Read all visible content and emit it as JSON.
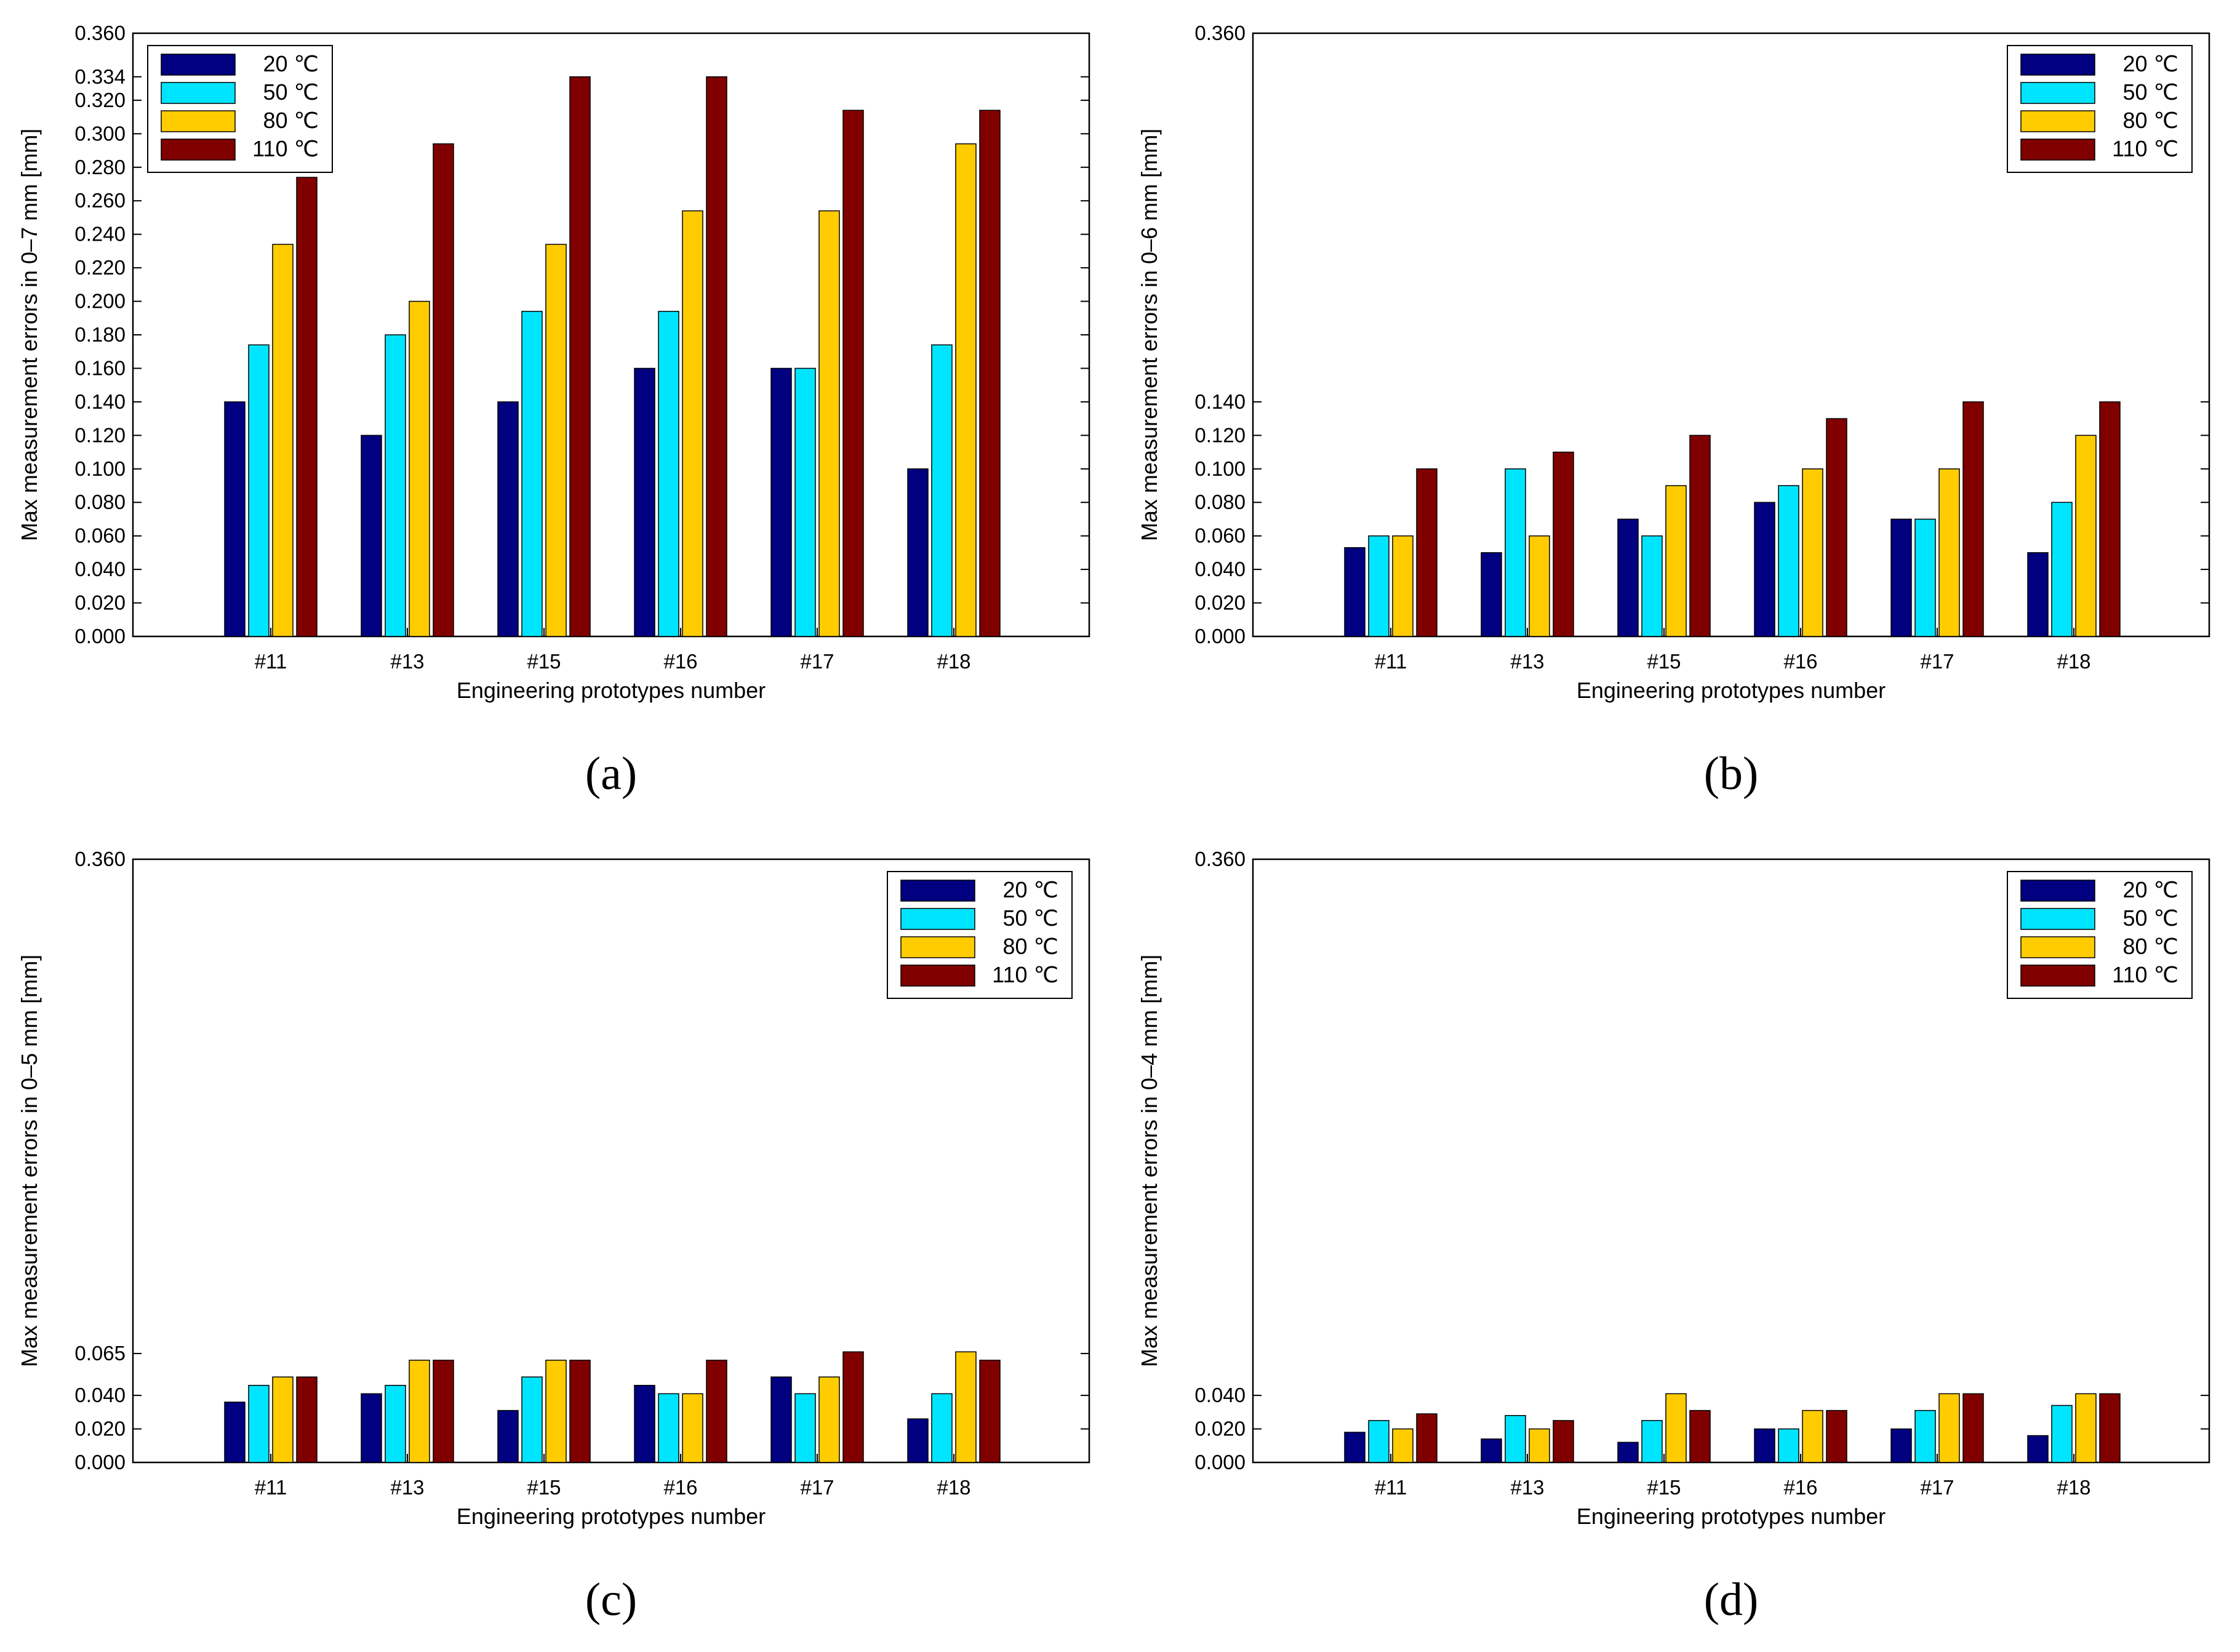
{
  "chart_data": [
    {
      "type": "bar",
      "panel_label": "(a)",
      "xlabel": "Engineering prototypes number",
      "ylabel": "Max measurement errors in 0–7 mm [mm]",
      "categories": [
        "#11",
        "#13",
        "#15",
        "#16",
        "#17",
        "#18"
      ],
      "ylim": [
        0,
        0.36
      ],
      "yticks": [
        "0.000",
        "0.020",
        "0.040",
        "0.060",
        "0.080",
        "0.100",
        "0.120",
        "0.140",
        "0.160",
        "0.180",
        "0.200",
        "0.220",
        "0.240",
        "0.260",
        "0.280",
        "0.300",
        "0.320",
        "0.334",
        "0.360"
      ],
      "legend_position": "top-left",
      "series": [
        {
          "name": "20 ℃",
          "color": "#000080",
          "values": [
            0.14,
            0.12,
            0.14,
            0.16,
            0.16,
            0.1
          ]
        },
        {
          "name": "50 ℃",
          "color": "#00e5ff",
          "values": [
            0.174,
            0.18,
            0.194,
            0.194,
            0.16,
            0.174
          ]
        },
        {
          "name": "80 ℃",
          "color": "#ffcc00",
          "values": [
            0.234,
            0.2,
            0.234,
            0.254,
            0.254,
            0.294
          ]
        },
        {
          "name": "110 ℃",
          "color": "#800000",
          "values": [
            0.274,
            0.294,
            0.334,
            0.334,
            0.314,
            0.314
          ]
        }
      ]
    },
    {
      "type": "bar",
      "panel_label": "(b)",
      "xlabel": "Engineering prototypes number",
      "ylabel": "Max measurement errors in 0–6 mm [mm]",
      "categories": [
        "#11",
        "#13",
        "#15",
        "#16",
        "#17",
        "#18"
      ],
      "ylim": [
        0,
        0.36
      ],
      "yticks": [
        "0.000",
        "0.020",
        "0.040",
        "0.060",
        "0.080",
        "0.100",
        "0.120",
        "0.140",
        "0.360"
      ],
      "legend_position": "top-right",
      "series": [
        {
          "name": "20 ℃",
          "color": "#000080",
          "values": [
            0.053,
            0.05,
            0.07,
            0.08,
            0.07,
            0.05
          ]
        },
        {
          "name": "50 ℃",
          "color": "#00e5ff",
          "values": [
            0.06,
            0.1,
            0.06,
            0.09,
            0.07,
            0.08
          ]
        },
        {
          "name": "80 ℃",
          "color": "#ffcc00",
          "values": [
            0.06,
            0.06,
            0.09,
            0.1,
            0.1,
            0.12
          ]
        },
        {
          "name": "110 ℃",
          "color": "#800000",
          "values": [
            0.1,
            0.11,
            0.12,
            0.13,
            0.14,
            0.14
          ]
        }
      ]
    },
    {
      "type": "bar",
      "panel_label": "(c)",
      "xlabel": "Engineering prototypes number",
      "ylabel": "Max measurement errors in 0–5 mm [mm]",
      "categories": [
        "#11",
        "#13",
        "#15",
        "#16",
        "#17",
        "#18"
      ],
      "ylim": [
        0,
        0.36
      ],
      "yticks": [
        "0.000",
        "0.020",
        "0.040",
        "0.065",
        "0.360"
      ],
      "legend_position": "top-right",
      "series": [
        {
          "name": "20 ℃",
          "color": "#000080",
          "values": [
            0.036,
            0.041,
            0.031,
            0.046,
            0.051,
            0.026
          ]
        },
        {
          "name": "50 ℃",
          "color": "#00e5ff",
          "values": [
            0.046,
            0.046,
            0.051,
            0.041,
            0.041,
            0.041
          ]
        },
        {
          "name": "80 ℃",
          "color": "#ffcc00",
          "values": [
            0.051,
            0.061,
            0.061,
            0.041,
            0.051,
            0.066
          ]
        },
        {
          "name": "110 ℃",
          "color": "#800000",
          "values": [
            0.051,
            0.061,
            0.061,
            0.061,
            0.066,
            0.061
          ]
        }
      ]
    },
    {
      "type": "bar",
      "panel_label": "(d)",
      "xlabel": "Engineering prototypes number",
      "ylabel": "Max measurement errors in 0–4 mm [mm]",
      "categories": [
        "#11",
        "#13",
        "#15",
        "#16",
        "#17",
        "#18"
      ],
      "ylim": [
        0,
        0.36
      ],
      "yticks": [
        "0.000",
        "0.020",
        "0.040",
        "0.360"
      ],
      "legend_position": "top-right",
      "series": [
        {
          "name": "20 ℃",
          "color": "#000080",
          "values": [
            0.018,
            0.014,
            0.012,
            0.02,
            0.02,
            0.016
          ]
        },
        {
          "name": "50 ℃",
          "color": "#00e5ff",
          "values": [
            0.025,
            0.028,
            0.025,
            0.02,
            0.031,
            0.034
          ]
        },
        {
          "name": "80 ℃",
          "color": "#ffcc00",
          "values": [
            0.02,
            0.02,
            0.041,
            0.031,
            0.041,
            0.041
          ]
        },
        {
          "name": "110 ℃",
          "color": "#800000",
          "values": [
            0.029,
            0.025,
            0.031,
            0.031,
            0.041,
            0.041
          ]
        }
      ]
    }
  ]
}
